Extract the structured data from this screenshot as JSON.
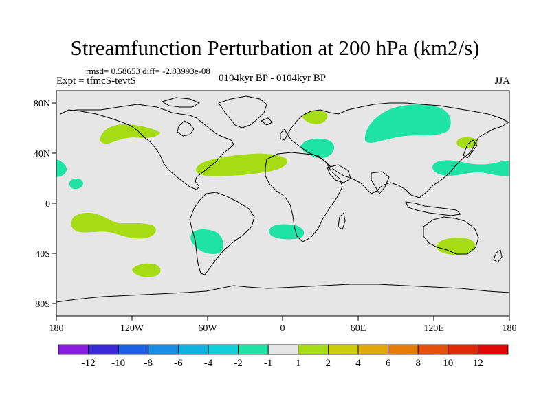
{
  "figure": {
    "title": "Streamfunction Perturbation at 200 hPa (km2/s)",
    "stats": "rmsd= 0.58653 diff= -2.83993e-08",
    "experiment": "Expt = tfmcS-tevtS",
    "period": "0104kyr BP - 0104kyr BP",
    "season": "JJA"
  },
  "map_data": {
    "type": "contour-map",
    "projection": "cylindrical-equidistant",
    "lon_range": [
      -180,
      180
    ],
    "lat_range": [
      -90,
      90
    ],
    "x_ticks": [
      "180",
      "120W",
      "60W",
      "0",
      "60E",
      "120E",
      "180"
    ],
    "y_ticks": [
      "80N",
      "40N",
      "0",
      "40S",
      "80S"
    ],
    "background_color": "#e6e6e6",
    "coast_color": "#000000"
  },
  "colorbar": {
    "labels": [
      "-12",
      "-10",
      "-8",
      "-6",
      "-4",
      "-2",
      "-1",
      "1",
      "2",
      "4",
      "6",
      "8",
      "10",
      "12"
    ],
    "colors": [
      "#8a1ee0",
      "#3b28d6",
      "#1c5ee6",
      "#168ee6",
      "#10b3e0",
      "#12d0d8",
      "#1ee3a4",
      "#e6e6e6",
      "#a6dc14",
      "#cccc0c",
      "#e0a808",
      "#e47c06",
      "#e45008",
      "#e02a08",
      "#e00808"
    ]
  },
  "anomaly_regions": [
    {
      "name": "N Pacific",
      "level": "1 to 2",
      "color": "#a6dc14"
    },
    {
      "name": "Central N Atlantic",
      "level": "1 to 2",
      "color": "#a6dc14"
    },
    {
      "name": "Scandinavia",
      "level": "1 to 2",
      "color": "#a6dc14"
    },
    {
      "name": "Japan",
      "level": "1 to 2",
      "color": "#a6dc14"
    },
    {
      "name": "Eastern Equatorial Pacific",
      "level": "1 to 2",
      "color": "#a6dc14"
    },
    {
      "name": "S Pacific",
      "level": "1 to 2",
      "color": "#a6dc14"
    },
    {
      "name": "SE Australia",
      "level": "1 to 2",
      "color": "#a6dc14"
    },
    {
      "name": "Siberia",
      "level": "-2 to -1",
      "color": "#1ee3a4"
    },
    {
      "name": "Eastern Mediterranean",
      "level": "-2 to -1",
      "color": "#1ee3a4"
    },
    {
      "name": "NW Pacific",
      "level": "-2 to -1",
      "color": "#1ee3a4"
    },
    {
      "name": "Central Pacific",
      "level": "-2 to -1",
      "color": "#1ee3a4"
    },
    {
      "name": "South America",
      "level": "-2 to -1",
      "color": "#1ee3a4"
    },
    {
      "name": "South Atlantic",
      "level": "-2 to -1",
      "color": "#1ee3a4"
    }
  ]
}
